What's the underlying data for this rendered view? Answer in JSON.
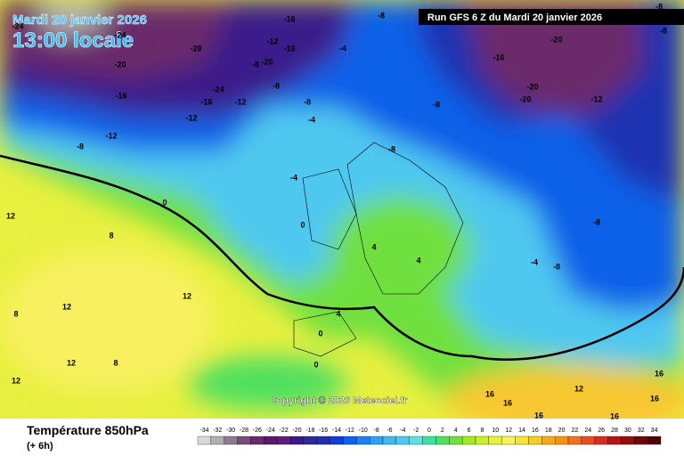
{
  "header": {
    "date": "Mardi 20 janvier 2026",
    "time": "13:00 locale",
    "run": "Run GFS 6 Z du Mardi 20 janvier 2026"
  },
  "copyright": "Copyright © 2026 Meteociel.fr",
  "footer": {
    "title": "Température 850hPa",
    "step": "(+ 6h)"
  },
  "scale": {
    "values": [
      -34,
      -32,
      -30,
      -28,
      -26,
      -24,
      -22,
      -20,
      -18,
      -16,
      -14,
      -12,
      -10,
      -8,
      -6,
      -4,
      -2,
      0,
      2,
      4,
      6,
      8,
      10,
      12,
      14,
      16,
      18,
      20,
      22,
      24,
      26,
      28,
      30,
      32,
      34
    ],
    "colors": [
      "#d8d8d8",
      "#b0b0b0",
      "#8c7c8c",
      "#7a4a7a",
      "#6a2a6a",
      "#5a1a6a",
      "#60207a",
      "#3a1a8a",
      "#2a2a9a",
      "#1a30b0",
      "#1040d0",
      "#1060e8",
      "#2080f0",
      "#30a0f0",
      "#40b8f0",
      "#50c8f0",
      "#60e0e0",
      "#40e0a0",
      "#50e060",
      "#70e040",
      "#a0e830",
      "#c8f030",
      "#e8f040",
      "#f8f060",
      "#f8e040",
      "#f8c830",
      "#f8a820",
      "#f89020",
      "#f07020",
      "#e05020",
      "#d03020",
      "#b01818",
      "#901010",
      "#700808",
      "#500000"
    ]
  },
  "map_labels": [
    -24,
    -24,
    -28,
    -20,
    -16,
    -24,
    -16,
    -12,
    -12,
    -12,
    -8,
    -20,
    -12,
    -16,
    -8,
    -8,
    -8,
    -4,
    -4,
    -8,
    -16,
    -8,
    -20,
    -16,
    -20,
    -20,
    -12,
    -8,
    -8,
    -4,
    -8,
    12,
    8,
    12,
    8,
    12,
    12,
    12,
    8,
    4,
    4,
    -4,
    -8,
    -8,
    0,
    0,
    4,
    0,
    0,
    16,
    16,
    16,
    12,
    16,
    16,
    16
  ]
}
